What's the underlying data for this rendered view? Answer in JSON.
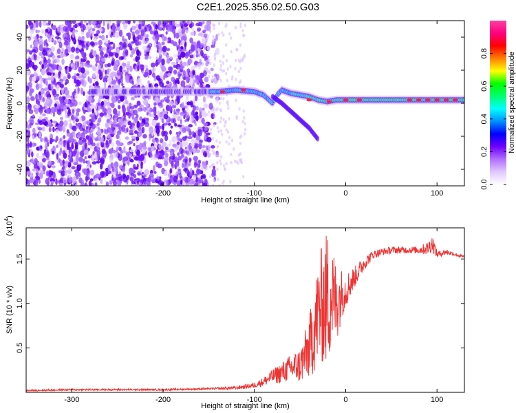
{
  "title": "C2E1.2025.356.02.50.G03",
  "chart_data": [
    {
      "type": "heatmap",
      "xlabel": "Height of straight line (km)",
      "ylabel": "Frequency (Hz)",
      "xlim": [
        -350,
        130
      ],
      "ylim": [
        -50,
        50
      ],
      "xticks": [
        -300,
        -200,
        -100,
        0,
        100
      ],
      "yticks": [
        -40,
        -20,
        0,
        20,
        40
      ],
      "colorbar": {
        "label": "Normalized spectral amplitude",
        "range": [
          0.0,
          1.0
        ],
        "ticks": [
          "0.0",
          "0.2",
          "0.4",
          "0.6",
          "0.8"
        ],
        "colormap": [
          "#ffffff",
          "#e0c8ff",
          "#b070ff",
          "#7000ff",
          "#0000ff",
          "#0090ff",
          "#00ffff",
          "#00ff70",
          "#00ff00",
          "#ffff00",
          "#ff8000",
          "#ff0000",
          "#ff0080",
          "#ff40a0"
        ]
      },
      "ridge": {
        "x": [
          -150,
          -140,
          -120,
          -100,
          -90,
          -80,
          -75,
          -70,
          -60,
          -50,
          -40,
          -30,
          -20,
          -10,
          0,
          20,
          40,
          60,
          80,
          100,
          120,
          130
        ],
        "y": [
          7,
          7,
          8,
          7,
          5,
          0,
          5,
          8,
          6,
          5,
          4,
          2,
          1,
          2,
          2,
          2,
          2,
          2,
          2,
          2,
          2,
          2
        ]
      },
      "ghost_branch": {
        "x": [
          -80,
          -70,
          -60,
          -50,
          -40,
          -30
        ],
        "y": [
          4,
          0,
          -5,
          -10,
          -15,
          -22
        ]
      }
    },
    {
      "type": "line",
      "xlabel": "Height of straight line (km)",
      "ylabel": "SNR (10 * v/v)",
      "y_multiplier": "(x10^4)",
      "xlim": [
        -350,
        130
      ],
      "ylim": [
        0,
        1.85
      ],
      "xticks": [
        -300,
        -200,
        -100,
        0,
        100
      ],
      "yticks": [
        0.5,
        1.0,
        1.5
      ],
      "ytick_labels": [
        "0.5",
        "1.0",
        "1.5"
      ],
      "series": [
        {
          "color": "#ee3333",
          "x": [
            -350,
            -300,
            -250,
            -200,
            -150,
            -120,
            -100,
            -90,
            -80,
            -70,
            -60,
            -50,
            -40,
            -35,
            -30,
            -25,
            -20,
            -15,
            -10,
            -5,
            0,
            10,
            20,
            30,
            40,
            50,
            60,
            70,
            80,
            90,
            95,
            100,
            110,
            120,
            130
          ],
          "y": [
            0.02,
            0.03,
            0.03,
            0.03,
            0.04,
            0.05,
            0.08,
            0.12,
            0.18,
            0.22,
            0.28,
            0.3,
            0.5,
            0.7,
            0.9,
            1.0,
            1.05,
            1.1,
            1.0,
            1.1,
            1.15,
            1.3,
            1.45,
            1.55,
            1.58,
            1.6,
            1.6,
            1.6,
            1.6,
            1.62,
            1.68,
            1.55,
            1.58,
            1.55,
            1.52
          ],
          "noise_amplitude": [
            0.01,
            0.01,
            0.01,
            0.01,
            0.01,
            0.02,
            0.03,
            0.05,
            0.08,
            0.12,
            0.15,
            0.2,
            0.35,
            0.5,
            0.6,
            0.7,
            0.8,
            0.6,
            0.45,
            0.3,
            0.2,
            0.12,
            0.08,
            0.05,
            0.04,
            0.04,
            0.04,
            0.04,
            0.04,
            0.08,
            0.1,
            0.04,
            0.03,
            0.02,
            0.02
          ]
        }
      ]
    }
  ]
}
